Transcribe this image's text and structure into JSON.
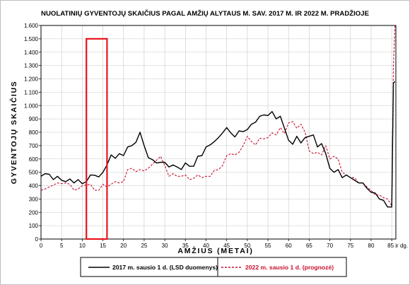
{
  "chart_data": {
    "type": "line",
    "title": "NUOLATINIŲ GYVENTOJŲ SKAIČIUS PAGAL AMŽIŲ ALYTAUS M. SAV. 2017 M. IR 2022 M. PRADŽIOJE",
    "xlabel": "AMŽIUS (METAI)",
    "ylabel": "GYVENTOJŲ SKAIČIUS",
    "xlim": [
      0,
      86
    ],
    "ylim": [
      0,
      1600
    ],
    "x_ticks": [
      {
        "value": 0,
        "label": "0"
      },
      {
        "value": 5,
        "label": "5"
      },
      {
        "value": 10,
        "label": "10"
      },
      {
        "value": 15,
        "label": "15"
      },
      {
        "value": 20,
        "label": "20"
      },
      {
        "value": 25,
        "label": "25"
      },
      {
        "value": 30,
        "label": "30"
      },
      {
        "value": 35,
        "label": "35"
      },
      {
        "value": 40,
        "label": "40"
      },
      {
        "value": 45,
        "label": "45"
      },
      {
        "value": 50,
        "label": "50"
      },
      {
        "value": 55,
        "label": "55"
      },
      {
        "value": 60,
        "label": "60"
      },
      {
        "value": 65,
        "label": "65"
      },
      {
        "value": 70,
        "label": "70"
      },
      {
        "value": 75,
        "label": "75"
      },
      {
        "value": 80,
        "label": "80"
      },
      {
        "value": 85,
        "label": "85 ir dg."
      }
    ],
    "y_ticks": [
      {
        "value": 0,
        "label": "0"
      },
      {
        "value": 100,
        "label": "100"
      },
      {
        "value": 200,
        "label": "200"
      },
      {
        "value": 300,
        "label": "300"
      },
      {
        "value": 400,
        "label": "400"
      },
      {
        "value": 500,
        "label": "500"
      },
      {
        "value": 600,
        "label": "600"
      },
      {
        "value": 700,
        "label": "700"
      },
      {
        "value": 800,
        "label": "800"
      },
      {
        "value": 900,
        "label": "900"
      },
      {
        "value": 1000,
        "label": "1.000"
      },
      {
        "value": 1100,
        "label": "1.100"
      },
      {
        "value": 1200,
        "label": "1.200"
      },
      {
        "value": 1300,
        "label": "1.300"
      },
      {
        "value": 1400,
        "label": "1.400"
      },
      {
        "value": 1500,
        "label": "1.500"
      },
      {
        "value": 1600,
        "label": "1.600"
      }
    ],
    "grid": true,
    "legend": "bottom",
    "highlight_box": {
      "x": [
        11,
        16
      ],
      "y": [
        0,
        1500
      ],
      "color": "#e8141c"
    },
    "series": [
      {
        "name": "2017 m. sausio 1 d. (LSD duomenys)",
        "color": "#000000",
        "style": "solid",
        "points": [
          [
            0,
            470
          ],
          [
            1,
            490
          ],
          [
            2,
            485
          ],
          [
            3,
            445
          ],
          [
            4,
            470
          ],
          [
            5,
            440
          ],
          [
            6,
            430
          ],
          [
            7,
            450
          ],
          [
            8,
            420
          ],
          [
            9,
            445
          ],
          [
            10,
            415
          ],
          [
            11,
            430
          ],
          [
            12,
            480
          ],
          [
            13,
            478
          ],
          [
            14,
            465
          ],
          [
            15,
            500
          ],
          [
            16,
            555
          ],
          [
            17,
            630
          ],
          [
            18,
            605
          ],
          [
            19,
            640
          ],
          [
            20,
            625
          ],
          [
            21,
            690
          ],
          [
            22,
            700
          ],
          [
            23,
            725
          ],
          [
            24,
            800
          ],
          [
            25,
            700
          ],
          [
            26,
            610
          ],
          [
            27,
            595
          ],
          [
            28,
            570
          ],
          [
            29,
            575
          ],
          [
            30,
            575
          ],
          [
            31,
            540
          ],
          [
            32,
            555
          ],
          [
            33,
            540
          ],
          [
            34,
            520
          ],
          [
            35,
            570
          ],
          [
            36,
            545
          ],
          [
            37,
            545
          ],
          [
            38,
            620
          ],
          [
            39,
            625
          ],
          [
            40,
            690
          ],
          [
            41,
            705
          ],
          [
            42,
            730
          ],
          [
            43,
            760
          ],
          [
            44,
            795
          ],
          [
            45,
            835
          ],
          [
            46,
            795
          ],
          [
            47,
            765
          ],
          [
            48,
            810
          ],
          [
            49,
            805
          ],
          [
            50,
            820
          ],
          [
            51,
            860
          ],
          [
            52,
            875
          ],
          [
            53,
            920
          ],
          [
            54,
            930
          ],
          [
            55,
            925
          ],
          [
            56,
            955
          ],
          [
            57,
            900
          ],
          [
            58,
            920
          ],
          [
            59,
            830
          ],
          [
            60,
            740
          ],
          [
            61,
            710
          ],
          [
            62,
            770
          ],
          [
            63,
            720
          ],
          [
            64,
            760
          ],
          [
            65,
            770
          ],
          [
            66,
            780
          ],
          [
            67,
            690
          ],
          [
            68,
            715
          ],
          [
            69,
            640
          ],
          [
            70,
            530
          ],
          [
            71,
            500
          ],
          [
            72,
            520
          ],
          [
            73,
            460
          ],
          [
            74,
            480
          ],
          [
            75,
            460
          ],
          [
            76,
            440
          ],
          [
            77,
            420
          ],
          [
            78,
            420
          ],
          [
            79,
            380
          ],
          [
            80,
            350
          ],
          [
            81,
            345
          ],
          [
            82,
            300
          ],
          [
            83,
            290
          ],
          [
            84,
            240
          ],
          [
            85,
            240
          ],
          [
            85.4,
            1170
          ],
          [
            85.8,
            1180
          ]
        ]
      },
      {
        "name": "2022 m. sausio 1 d. (prognozė)",
        "color": "#c8102e",
        "style": "dashed",
        "points": [
          [
            0,
            365
          ],
          [
            1,
            375
          ],
          [
            2,
            390
          ],
          [
            3,
            405
          ],
          [
            4,
            420
          ],
          [
            5,
            415
          ],
          [
            6,
            420
          ],
          [
            7,
            410
          ],
          [
            8,
            365
          ],
          [
            9,
            375
          ],
          [
            10,
            400
          ],
          [
            11,
            405
          ],
          [
            12,
            410
          ],
          [
            13,
            365
          ],
          [
            14,
            365
          ],
          [
            15,
            410
          ],
          [
            16,
            390
          ],
          [
            17,
            410
          ],
          [
            18,
            430
          ],
          [
            19,
            420
          ],
          [
            20,
            430
          ],
          [
            21,
            520
          ],
          [
            22,
            530
          ],
          [
            23,
            505
          ],
          [
            24,
            520
          ],
          [
            25,
            510
          ],
          [
            26,
            530
          ],
          [
            27,
            560
          ],
          [
            28,
            590
          ],
          [
            29,
            620
          ],
          [
            30,
            550
          ],
          [
            31,
            470
          ],
          [
            32,
            490
          ],
          [
            33,
            470
          ],
          [
            34,
            470
          ],
          [
            35,
            480
          ],
          [
            36,
            445
          ],
          [
            37,
            455
          ],
          [
            38,
            480
          ],
          [
            39,
            460
          ],
          [
            40,
            470
          ],
          [
            41,
            470
          ],
          [
            42,
            515
          ],
          [
            43,
            520
          ],
          [
            44,
            550
          ],
          [
            45,
            625
          ],
          [
            46,
            640
          ],
          [
            47,
            630
          ],
          [
            48,
            650
          ],
          [
            49,
            700
          ],
          [
            50,
            770
          ],
          [
            51,
            730
          ],
          [
            52,
            705
          ],
          [
            53,
            755
          ],
          [
            54,
            750
          ],
          [
            55,
            760
          ],
          [
            56,
            795
          ],
          [
            57,
            780
          ],
          [
            58,
            835
          ],
          [
            59,
            790
          ],
          [
            60,
            870
          ],
          [
            61,
            880
          ],
          [
            62,
            830
          ],
          [
            63,
            860
          ],
          [
            64,
            800
          ],
          [
            65,
            660
          ],
          [
            66,
            640
          ],
          [
            67,
            650
          ],
          [
            68,
            630
          ],
          [
            69,
            700
          ],
          [
            70,
            600
          ],
          [
            71,
            620
          ],
          [
            72,
            600
          ],
          [
            73,
            500
          ],
          [
            74,
            480
          ],
          [
            75,
            460
          ],
          [
            76,
            460
          ],
          [
            77,
            420
          ],
          [
            78,
            420
          ],
          [
            79,
            390
          ],
          [
            80,
            365
          ],
          [
            81,
            330
          ],
          [
            82,
            330
          ],
          [
            83,
            310
          ],
          [
            84,
            300
          ],
          [
            85,
            250
          ],
          [
            85.4,
            1300
          ],
          [
            85.8,
            1600
          ]
        ]
      }
    ]
  }
}
